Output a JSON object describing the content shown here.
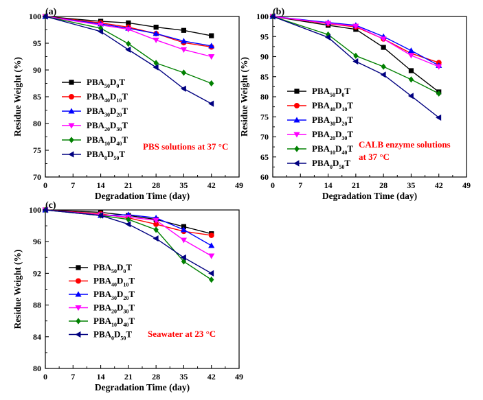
{
  "figure": {
    "panel_labels": [
      "(a)",
      "(b)",
      "(c)"
    ]
  },
  "chart_data": [
    {
      "type": "line",
      "panel": "(a)",
      "xlabel": "Degradation Time (day)",
      "ylabel": "Residue Weight (%)",
      "xlim": [
        0,
        49
      ],
      "ylim": [
        70,
        100
      ],
      "xticks": [
        0,
        7,
        14,
        21,
        28,
        35,
        42,
        49
      ],
      "yticks": [
        70,
        75,
        80,
        85,
        90,
        95,
        100
      ],
      "x": [
        0,
        14,
        21,
        28,
        35,
        42
      ],
      "annotation": "PBS solutions at 37 °C",
      "legend_position": "left",
      "series": [
        {
          "name": "PBA50D0T",
          "values": [
            100,
            99.1,
            98.8,
            98.0,
            97.4,
            96.4
          ]
        },
        {
          "name": "PBA40D10T",
          "values": [
            100,
            98.8,
            98.0,
            96.8,
            95.1,
            94.3
          ]
        },
        {
          "name": "PBA30D20T",
          "values": [
            100,
            98.6,
            97.8,
            96.8,
            95.4,
            94.5
          ]
        },
        {
          "name": "PBA20D30T",
          "values": [
            100,
            98.4,
            97.6,
            95.6,
            93.8,
            92.5
          ]
        },
        {
          "name": "PBA10D40T",
          "values": [
            100,
            97.8,
            94.9,
            91.3,
            89.5,
            87.5
          ]
        },
        {
          "name": "PBA0D50T",
          "values": [
            100,
            97.2,
            93.8,
            90.5,
            86.5,
            83.7
          ]
        }
      ]
    },
    {
      "type": "line",
      "panel": "(b)",
      "xlabel": "Degradation Time (day)",
      "ylabel": "Residue Weight (%)",
      "xlim": [
        0,
        49
      ],
      "ylim": [
        60,
        100
      ],
      "xticks": [
        0,
        7,
        14,
        21,
        28,
        35,
        42,
        49
      ],
      "yticks": [
        60,
        65,
        70,
        75,
        80,
        85,
        90,
        95,
        100
      ],
      "x": [
        0,
        14,
        21,
        28,
        35,
        42
      ],
      "annotation": [
        "CALB enzyme solutions",
        "at 37 °C"
      ],
      "legend_position": "left",
      "series": [
        {
          "name": "PBA50D0T",
          "values": [
            100,
            97.8,
            96.8,
            92.3,
            86.5,
            81.2
          ]
        },
        {
          "name": "PBA40D10T",
          "values": [
            100,
            98.2,
            97.4,
            94.4,
            90.8,
            88.5
          ]
        },
        {
          "name": "PBA30D20T",
          "values": [
            100,
            98.5,
            97.8,
            95.0,
            91.5,
            87.8
          ]
        },
        {
          "name": "PBA20D30T",
          "values": [
            100,
            98.3,
            97.6,
            94.4,
            90.3,
            87.5
          ]
        },
        {
          "name": "PBA10D40T",
          "values": [
            100,
            95.5,
            90.2,
            87.5,
            84.3,
            80.8
          ]
        },
        {
          "name": "PBA0D50T",
          "values": [
            100,
            94.8,
            88.8,
            85.5,
            80.2,
            74.8
          ]
        }
      ]
    },
    {
      "type": "line",
      "panel": "(c)",
      "xlabel": "Degradation Time (day)",
      "ylabel": "Residue Weight (%)",
      "xlim": [
        0,
        49
      ],
      "ylim": [
        80,
        100
      ],
      "xticks": [
        0,
        7,
        14,
        21,
        28,
        35,
        42,
        49
      ],
      "yticks": [
        80,
        84,
        88,
        92,
        96,
        100
      ],
      "x": [
        0,
        14,
        21,
        28,
        35,
        42
      ],
      "annotation": "Seawater at 23 °C",
      "legend_position": "left",
      "series": [
        {
          "name": "PBA50D0T",
          "values": [
            100,
            99.7,
            99.3,
            98.8,
            97.9,
            97.0
          ]
        },
        {
          "name": "PBA40D10T",
          "values": [
            100,
            99.5,
            99.0,
            98.2,
            97.3,
            96.8
          ]
        },
        {
          "name": "PBA30D20T",
          "values": [
            100,
            99.3,
            99.4,
            99.0,
            97.5,
            95.5
          ]
        },
        {
          "name": "PBA20D30T",
          "values": [
            100,
            99.4,
            99.1,
            98.7,
            96.2,
            94.2
          ]
        },
        {
          "name": "PBA10D40T",
          "values": [
            100,
            99.3,
            98.8,
            97.5,
            93.5,
            91.2
          ]
        },
        {
          "name": "PBA0D50T",
          "values": [
            100,
            99.3,
            98.2,
            96.4,
            94.0,
            92.0
          ]
        }
      ]
    }
  ],
  "series_styles": [
    {
      "color": "#000000",
      "marker": "square"
    },
    {
      "color": "#ff0000",
      "marker": "circle"
    },
    {
      "color": "#0000ff",
      "marker": "triangle-up"
    },
    {
      "color": "#ff00ff",
      "marker": "triangle-down"
    },
    {
      "color": "#008000",
      "marker": "diamond"
    },
    {
      "color": "#000080",
      "marker": "triangle-left"
    }
  ],
  "legend_labels": [
    {
      "base": "PBA",
      "sub1": "50",
      "mid": "D",
      "sub2": "0",
      "tail": "T"
    },
    {
      "base": "PBA",
      "sub1": "40",
      "mid": "D",
      "sub2": "10",
      "tail": "T"
    },
    {
      "base": "PBA",
      "sub1": "30",
      "mid": "D",
      "sub2": "20",
      "tail": "T"
    },
    {
      "base": "PBA",
      "sub1": "20",
      "mid": "D",
      "sub2": "30",
      "tail": "T"
    },
    {
      "base": "PBA",
      "sub1": "10",
      "mid": "D",
      "sub2": "40",
      "tail": "T"
    },
    {
      "base": "PBA",
      "sub1": "0",
      "mid": "D",
      "sub2": "50",
      "tail": "T"
    }
  ],
  "annotation_color": "#ff0000"
}
